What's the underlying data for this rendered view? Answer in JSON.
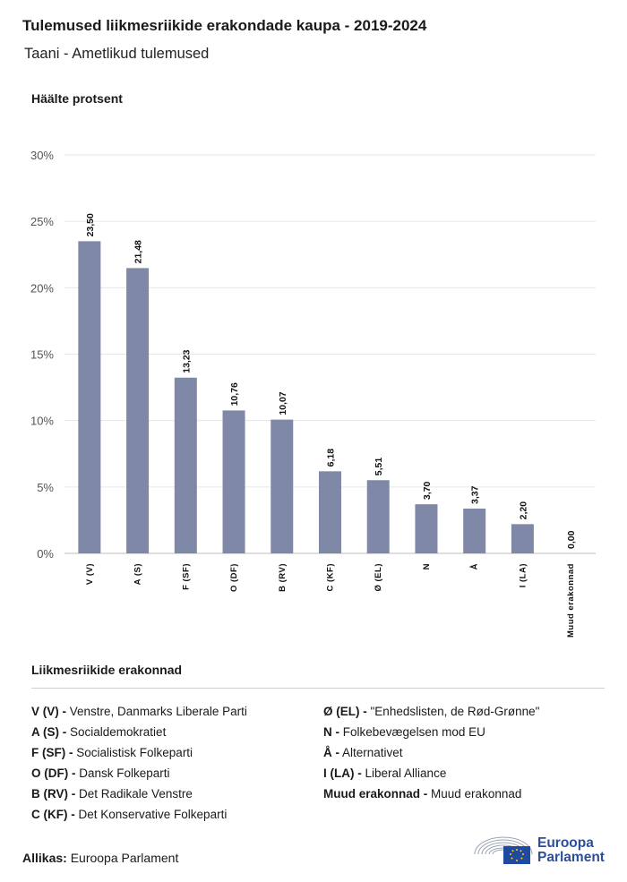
{
  "header": {
    "title": "Tulemused liikmesriikide erakondade kaupa - 2019-2024",
    "subtitle": "Taani - Ametlikud tulemused"
  },
  "chart_data": {
    "type": "bar",
    "ylabel": "Häälte protsent",
    "ylim": [
      0,
      30
    ],
    "yticks": [
      "0%",
      "5%",
      "10%",
      "15%",
      "20%",
      "25%",
      "30%"
    ],
    "ytick_values": [
      0,
      5,
      10,
      15,
      20,
      25,
      30
    ],
    "categories": [
      "V (V)",
      "A (S)",
      "F (SF)",
      "O (DF)",
      "B (RV)",
      "C (KF)",
      "Ø (EL)",
      "N",
      "Å",
      "I (LA)",
      "Muud erakonnad"
    ],
    "values": [
      23.5,
      21.48,
      13.23,
      10.76,
      10.07,
      6.18,
      5.51,
      3.7,
      3.37,
      2.2,
      0.0
    ],
    "value_labels": [
      "23,50",
      "21,48",
      "13,23",
      "10,76",
      "10,07",
      "6,18",
      "5,51",
      "3,70",
      "3,37",
      "2,20",
      "0,00"
    ],
    "bar_color": "#7f88a6",
    "grid": true
  },
  "legend": {
    "title": "Liikmesriikide erakonnad",
    "left": [
      {
        "code": "V (V) -",
        "name": "Venstre, Danmarks Liberale Parti"
      },
      {
        "code": "A (S) -",
        "name": "Socialdemokratiet"
      },
      {
        "code": "F (SF) -",
        "name": "Socialistisk Folkeparti"
      },
      {
        "code": "O (DF) -",
        "name": "Dansk Folkeparti"
      },
      {
        "code": "B (RV) -",
        "name": "Det Radikale Venstre"
      },
      {
        "code": "C (KF) -",
        "name": "Det Konservative Folkeparti"
      }
    ],
    "right": [
      {
        "code": "Ø (EL) -",
        "name": "\"Enhedslisten, de Rød-Grønne\""
      },
      {
        "code": "N -",
        "name": "Folkebevægelsen mod EU"
      },
      {
        "code": "Å -",
        "name": "Alternativet"
      },
      {
        "code": "I (LA) -",
        "name": "Liberal Alliance"
      },
      {
        "code": "Muud erakonnad -",
        "name": "Muud erakonnad"
      }
    ]
  },
  "footer": {
    "source_label": "Allikas:",
    "source_value": "Euroopa Parlament",
    "logo_line1": "Euroopa",
    "logo_line2": "Parlament",
    "logo_icon": "european-parliament-hemicycle-and-eu-flag"
  }
}
